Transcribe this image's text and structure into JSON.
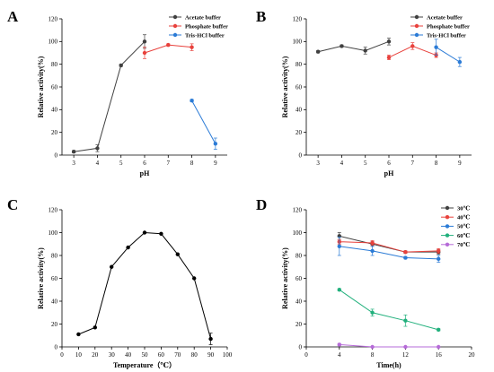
{
  "chart_data": [
    {
      "panel": "A",
      "type": "line",
      "xlabel": "pH",
      "ylabel": "Relative activity(%)",
      "xlim": [
        2.5,
        9.5
      ],
      "ylim": [
        0,
        120
      ],
      "xticks": [
        "3",
        "4",
        "5",
        "6",
        "7",
        "8",
        "9"
      ],
      "yticks": [
        "0",
        "20",
        "40",
        "60",
        "80",
        "100",
        "120"
      ],
      "legend": "top-right",
      "series": [
        {
          "name": "Acetate buffer",
          "color": "#404040",
          "x": [
            3,
            4,
            5,
            6
          ],
          "y": [
            3,
            6,
            79,
            100
          ],
          "err": [
            1,
            3,
            1,
            6
          ]
        },
        {
          "name": "Phosphate buffer",
          "color": "#e8413c",
          "x": [
            6,
            7,
            8
          ],
          "y": [
            90,
            97,
            95
          ],
          "err": [
            5,
            1,
            3
          ]
        },
        {
          "name": "Tris-HCl buffer",
          "color": "#2b7bd6",
          "x": [
            8,
            9
          ],
          "y": [
            48,
            10
          ],
          "err": [
            1,
            5
          ]
        }
      ]
    },
    {
      "panel": "B",
      "type": "line",
      "xlabel": "pH",
      "ylabel": "Relative activity(%)",
      "xlim": [
        2.5,
        9.5
      ],
      "ylim": [
        0,
        120
      ],
      "xticks": [
        "3",
        "4",
        "5",
        "6",
        "7",
        "8",
        "9"
      ],
      "yticks": [
        "0",
        "20",
        "40",
        "60",
        "80",
        "100",
        "120"
      ],
      "legend": "top-right",
      "series": [
        {
          "name": "Acetate buffer",
          "color": "#404040",
          "x": [
            3,
            4,
            5,
            6
          ],
          "y": [
            91,
            96,
            92,
            100
          ],
          "err": [
            1,
            1,
            3,
            3
          ]
        },
        {
          "name": "Phosphate buffer",
          "color": "#e8413c",
          "x": [
            6,
            7,
            8
          ],
          "y": [
            86,
            96,
            88
          ],
          "err": [
            2,
            3,
            2
          ]
        },
        {
          "name": "Tris-HCl buffer",
          "color": "#2b7bd6",
          "x": [
            8,
            9
          ],
          "y": [
            95,
            82
          ],
          "err": [
            7,
            4
          ]
        }
      ]
    },
    {
      "panel": "C",
      "type": "line",
      "xlabel": "Temperature（℃）",
      "ylabel": "Relative activity(%)",
      "xlim": [
        0,
        100
      ],
      "ylim": [
        0,
        120
      ],
      "xticks": [
        "0",
        "10",
        "20",
        "30",
        "40",
        "50",
        "60",
        "70",
        "80",
        "90",
        "100"
      ],
      "yticks": [
        "0",
        "20",
        "40",
        "60",
        "80",
        "100",
        "120"
      ],
      "legend": "none",
      "series": [
        {
          "name": "",
          "color": "#000000",
          "x": [
            10,
            20,
            30,
            40,
            50,
            60,
            70,
            80,
            90
          ],
          "y": [
            11,
            17,
            70,
            87,
            100,
            99,
            81,
            60,
            7
          ],
          "err": [
            0,
            0,
            0,
            0,
            0,
            0,
            0,
            0,
            5
          ]
        }
      ]
    },
    {
      "panel": "D",
      "type": "line",
      "xlabel": "Time(h)",
      "ylabel": "Relative activity(%)",
      "xlim": [
        0,
        20
      ],
      "ylim": [
        0,
        120
      ],
      "xticks": [
        "0",
        "4",
        "8",
        "12",
        "16",
        "20"
      ],
      "yticks": [
        "0",
        "20",
        "40",
        "60",
        "80",
        "100",
        "120"
      ],
      "legend": "top-right",
      "series": [
        {
          "name": "30℃",
          "color": "#404040",
          "x": [
            4,
            8,
            12,
            16
          ],
          "y": [
            97,
            90,
            83,
            83
          ],
          "err": [
            3,
            2,
            1,
            2
          ]
        },
        {
          "name": "40℃",
          "color": "#e8413c",
          "x": [
            4,
            8,
            12,
            16
          ],
          "y": [
            92,
            91,
            83,
            84
          ],
          "err": [
            2,
            2,
            1,
            2
          ]
        },
        {
          "name": "50℃",
          "color": "#2b7bd6",
          "x": [
            4,
            8,
            12,
            16
          ],
          "y": [
            88,
            84,
            78,
            77
          ],
          "err": [
            8,
            4,
            1,
            3
          ]
        },
        {
          "name": "60℃",
          "color": "#21b07c",
          "x": [
            4,
            8,
            12,
            16
          ],
          "y": [
            50,
            30,
            23,
            15
          ],
          "err": [
            1,
            3,
            5,
            1
          ]
        },
        {
          "name": "70℃",
          "color": "#b66bd8",
          "x": [
            4,
            8,
            12,
            16
          ],
          "y": [
            2,
            0,
            0,
            0
          ],
          "err": [
            1,
            0,
            0,
            0
          ]
        }
      ]
    }
  ]
}
